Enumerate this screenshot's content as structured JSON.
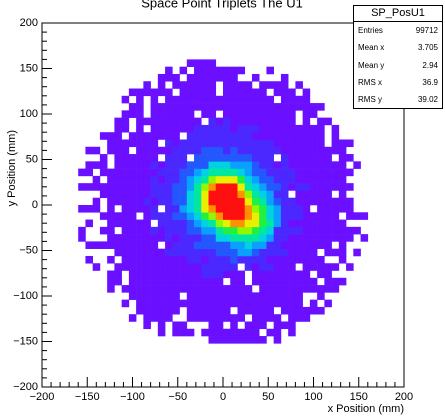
{
  "chart_data": {
    "type": "heatmap",
    "title": "Space Point Triplets The U1",
    "xlabel": "x Position (mm)",
    "ylabel": "y Position (mm)",
    "xlim": [
      -200,
      200
    ],
    "ylim": [
      -200,
      200
    ],
    "x_ticks": [
      "−200",
      "−150",
      "−100",
      "−50",
      "0",
      "50",
      "100",
      "150",
      "200"
    ],
    "y_ticks": [
      "200",
      "150",
      "100",
      "50",
      "0",
      "−50",
      "−100",
      "−150",
      "−200"
    ],
    "bin_width_mm": 8,
    "footprint_radius_mm": 155,
    "peak_center_mm": [
      0,
      8
    ],
    "secondary_lobe_mm": [
      30,
      -20
    ],
    "grid": false,
    "legend": "none",
    "colors": {
      "background_bin": "#6a0fff",
      "palette": [
        "#6a0fff",
        "#4a28ff",
        "#2458ff",
        "#0aa0ff",
        "#00d2e0",
        "#00e8a0",
        "#20f040",
        "#90f800",
        "#e8f000",
        "#ff9000",
        "#ff1010"
      ]
    },
    "statbox": {
      "name": "SP_PosU1",
      "rows": [
        {
          "label": "Entries",
          "value": "99712"
        },
        {
          "label": "Mean x",
          "value": "3.705"
        },
        {
          "label": "Mean y",
          "value": "2.94"
        },
        {
          "label": "RMS x",
          "value": "36.9"
        },
        {
          "label": "RMS y",
          "value": "39.02"
        }
      ]
    }
  }
}
